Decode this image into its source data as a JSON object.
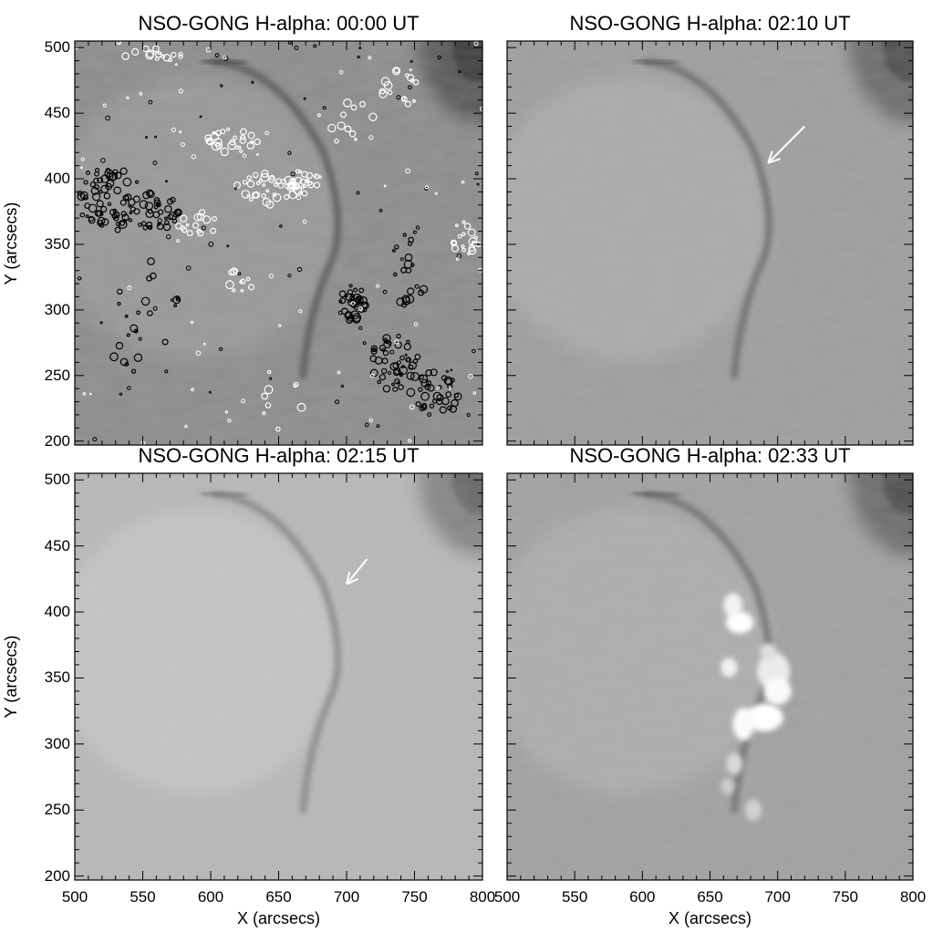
{
  "figure": {
    "panels": [
      {
        "title": "NSO-GONG H-alpha: 00:00 UT",
        "brightness": 0.55,
        "has_contours": true,
        "arrow": false,
        "flare": false
      },
      {
        "title": "NSO-GONG H-alpha: 02:10 UT",
        "brightness": 0.62,
        "has_contours": false,
        "arrow": true,
        "flare": false
      },
      {
        "title": "NSO-GONG H-alpha: 02:15 UT",
        "brightness": 0.72,
        "has_contours": false,
        "arrow": true,
        "flare": false
      },
      {
        "title": "NSO-GONG H-alpha: 02:33 UT",
        "brightness": 0.63,
        "has_contours": false,
        "arrow": false,
        "flare": true
      }
    ],
    "x_axis": {
      "label": "X (arcsecs)",
      "ticks": [
        "500",
        "550",
        "600",
        "650",
        "700",
        "750",
        "800"
      ],
      "range": [
        500,
        800
      ]
    },
    "y_axis": {
      "label": "Y (arcsecs)",
      "ticks": [
        "200",
        "250",
        "300",
        "350",
        "400",
        "450",
        "500"
      ],
      "range": [
        197,
        505
      ]
    },
    "colors": {
      "background": "#ffffff",
      "axes": "#000000",
      "contour_positive": "#ffffff",
      "contour_negative": "#000000",
      "arrow": "#ffffff"
    }
  }
}
